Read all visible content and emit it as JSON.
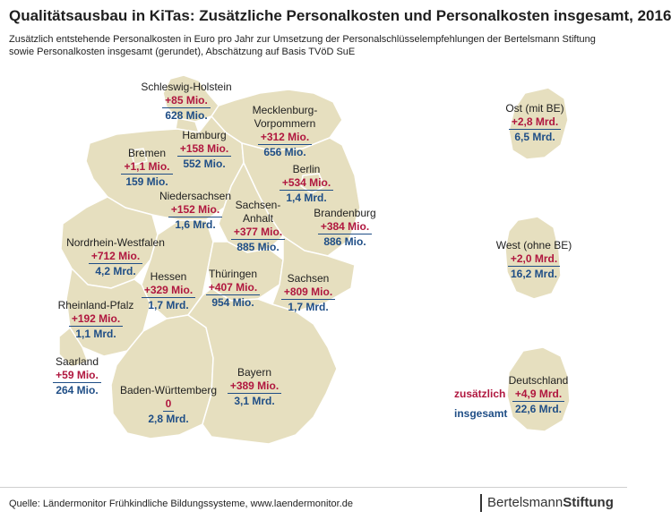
{
  "title": "Qualitätsausbau in KiTas: Zusätzliche Personalkosten und Personalkosten insgesamt, 2016",
  "subtitle": "Zusätzlich entstehende Personalkosten in Euro pro Jahr zur Umsetzung der Personalschlüsselempfehlungen der Bertelsmann Stiftung sowie Personalkosten insgesamt (gerundet), Abschätzung auf Basis TVöD SuE",
  "colors": {
    "map_fill": "#e6dfbf",
    "map_border": "#ffffff",
    "additional_costs": "#b0173f",
    "total_costs": "#1f4e86"
  },
  "states": [
    {
      "name": "Schleswig-Holstein",
      "additional": "+85 Mio.",
      "total": "628 Mio."
    },
    {
      "name": "Mecklenburg-\nVorpommern",
      "additional": "+312 Mio.",
      "total": "656 Mio."
    },
    {
      "name": "Hamburg",
      "additional": "+158 Mio.",
      "total": "552 Mio."
    },
    {
      "name": "Bremen",
      "additional": "+1,1 Mio.",
      "total": "159 Mio."
    },
    {
      "name": "Berlin",
      "additional": "+534 Mio.",
      "total": "1,4 Mrd."
    },
    {
      "name": "Niedersachsen",
      "additional": "+152 Mio.",
      "total": "1,6 Mrd."
    },
    {
      "name": "Sachsen-\nAnhalt",
      "additional": "+377 Mio.",
      "total": "885 Mio."
    },
    {
      "name": "Brandenburg",
      "additional": "+384 Mio.",
      "total": "886 Mio."
    },
    {
      "name": "Nordrhein-Westfalen",
      "additional": "+712 Mio.",
      "total": "4,2 Mrd."
    },
    {
      "name": "Hessen",
      "additional": "+329 Mio.",
      "total": "1,7 Mrd."
    },
    {
      "name": "Thüringen",
      "additional": "+407 Mio.",
      "total": "954 Mio."
    },
    {
      "name": "Sachsen",
      "additional": "+809 Mio.",
      "total": "1,7 Mrd."
    },
    {
      "name": "Rheinland-Pfalz",
      "additional": "+192 Mio.",
      "total": "1,1 Mrd."
    },
    {
      "name": "Saarland",
      "additional": "+59 Mio.",
      "total": "264 Mio."
    },
    {
      "name": "Baden-Württemberg",
      "additional": "0",
      "total": "2,8 Mrd."
    },
    {
      "name": "Bayern",
      "additional": "+389 Mio.",
      "total": "3,1 Mrd."
    }
  ],
  "regions": [
    {
      "name": "Ost (mit BE)",
      "additional": "+2,8 Mrd.",
      "total": "6,5 Mrd."
    },
    {
      "name": "West (ohne BE)",
      "additional": "+2,0 Mrd.",
      "total": "16,2 Mrd."
    },
    {
      "name": "Deutschland",
      "additional": "+4,9 Mrd.",
      "total": "22,6 Mrd."
    }
  ],
  "legend": {
    "additional": "zusätzlich",
    "total": "insgesamt"
  },
  "source": "Quelle: Ländermonitor Frühkindliche Bildungssysteme, www.laendermonitor.de",
  "brand": {
    "part1": "Bertelsmann",
    "part2": "Stiftung"
  }
}
